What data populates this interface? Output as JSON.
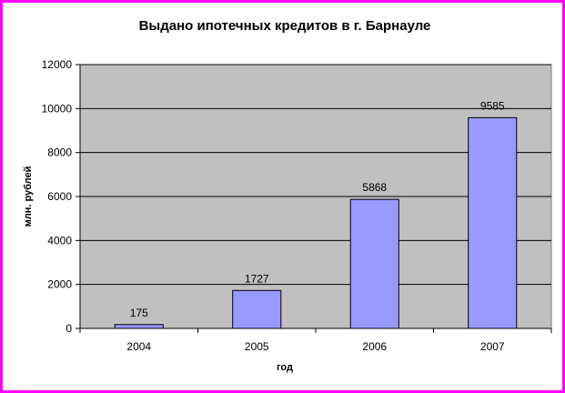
{
  "chart_data": {
    "type": "bar",
    "title": "Выдано ипотечных кредитов в г. Барнауле",
    "xlabel": "год",
    "ylabel": "млн. рублей",
    "categories": [
      "2004",
      "2005",
      "2006",
      "2007"
    ],
    "values": [
      175,
      1727,
      5868,
      9585
    ],
    "data_labels": [
      "175",
      "1727",
      "5868",
      "9585"
    ],
    "ylim": [
      0,
      12000
    ],
    "yticks": [
      0,
      2000,
      4000,
      6000,
      8000,
      10000,
      12000
    ],
    "grid": true,
    "legend": "none",
    "colors": {
      "bar": "#9999ff",
      "bar_border": "#000000",
      "plot_background": "#c0c0c0",
      "frame_border": "#ff00ff"
    }
  }
}
